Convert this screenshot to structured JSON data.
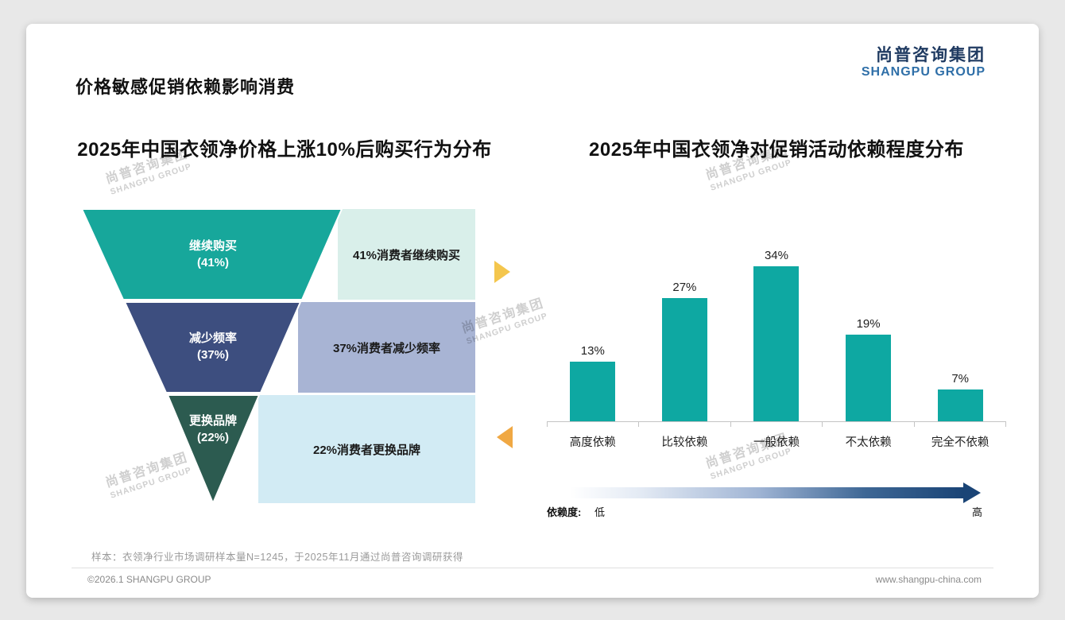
{
  "page": {
    "title": "价格敏感促销依赖影响消费",
    "logo": {
      "cn": "尚普咨询集团",
      "en": "SHANGPU GROUP"
    },
    "watermark": {
      "cn": "尚普咨询集团",
      "en": "SHANGPU GROUP"
    },
    "footer": {
      "sample_note": "样本：衣领净行业市场调研样本量N=1245，于2025年11月通过尚普咨询调研获得",
      "copyright": "©2026.1 SHANGPU GROUP",
      "website": "www.shangpu-china.com"
    }
  },
  "chart_data": [
    {
      "type": "funnel",
      "title": "2025年中国衣领净价格上涨10%后购买行为分布",
      "stages": [
        {
          "label": "继续购买",
          "pct_label": "(41%)",
          "value": 41,
          "note": "41%消费者继续购买",
          "color": "#17a79b",
          "note_bg": "#d9efea"
        },
        {
          "label": "减少频率",
          "pct_label": "(37%)",
          "value": 37,
          "note": "37%消费者减少频率",
          "color": "#3d4e7f",
          "note_bg": "#a8b4d4"
        },
        {
          "label": "更换品牌",
          "pct_label": "(22%)",
          "value": 22,
          "note": "22%消费者更换品牌",
          "color": "#2c5b50",
          "note_bg": "#d2ebf4"
        }
      ]
    },
    {
      "type": "bar",
      "title": "2025年中国衣领净对促销活动依赖程度分布",
      "categories": [
        "高度依赖",
        "比较依赖",
        "一般依赖",
        "不太依赖",
        "完全不依赖"
      ],
      "values": [
        13,
        27,
        34,
        19,
        7
      ],
      "value_suffix": "%",
      "bar_color": "#0ea8a2",
      "ylim": [
        0,
        38
      ],
      "legend": "none",
      "dependence_axis": {
        "label": "依赖度:",
        "low": "低",
        "high": "高"
      }
    }
  ]
}
